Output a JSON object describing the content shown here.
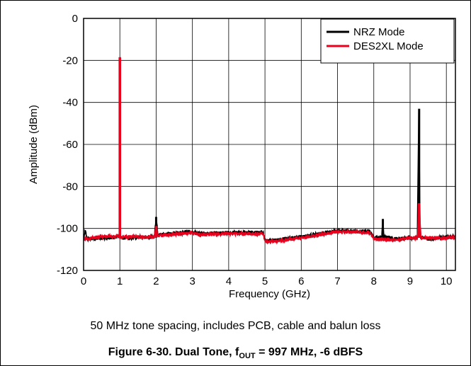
{
  "chart_data": {
    "type": "line",
    "title": "",
    "xlabel": "Frequency (GHz)",
    "ylabel": "Amplitude (dBm)",
    "xlim": [
      0,
      10.25
    ],
    "ylim": [
      -120,
      0
    ],
    "x_ticks": [
      0,
      1,
      2,
      3,
      4,
      5,
      6,
      7,
      8,
      9,
      10
    ],
    "y_ticks": [
      0,
      -20,
      -40,
      -60,
      -80,
      -100,
      -120
    ],
    "grid": true,
    "legend": "top-right",
    "series": [
      {
        "name": "NRZ Mode",
        "color": "#000000",
        "noise_floor": [
          [
            0,
            -104.5
          ],
          [
            0.05,
            -101
          ],
          [
            0.1,
            -105
          ],
          [
            0.98,
            -104
          ],
          [
            1.0,
            -104
          ],
          [
            1.05,
            -104.5
          ],
          [
            1.95,
            -104
          ],
          [
            2.0,
            -94.5
          ],
          [
            2.05,
            -103
          ],
          [
            3.0,
            -101.5
          ],
          [
            3.2,
            -102.5
          ],
          [
            4.0,
            -102
          ],
          [
            4.95,
            -102
          ],
          [
            5.0,
            -105.5
          ],
          [
            5.1,
            -106
          ],
          [
            6.0,
            -104
          ],
          [
            7.0,
            -101
          ],
          [
            7.9,
            -101.5
          ],
          [
            8.0,
            -104.5
          ],
          [
            8.22,
            -104
          ],
          [
            8.25,
            -95.5
          ],
          [
            8.28,
            -104
          ],
          [
            8.6,
            -105
          ],
          [
            9.0,
            -104.5
          ],
          [
            9.2,
            -104.5
          ],
          [
            9.24,
            -43
          ],
          [
            9.28,
            -104
          ],
          [
            9.5,
            -105
          ],
          [
            10.0,
            -104
          ],
          [
            10.25,
            -104
          ]
        ],
        "spikes": [
          {
            "x": 1.0,
            "y": -19
          },
          {
            "x": 2.0,
            "y": -94.5
          },
          {
            "x": 8.25,
            "y": -95.5
          },
          {
            "x": 9.25,
            "y": -43
          }
        ]
      },
      {
        "name": "DES2XL Mode",
        "color": "#e8001c",
        "noise_floor": [
          [
            0,
            -105
          ],
          [
            0.5,
            -104
          ],
          [
            0.98,
            -103.5
          ],
          [
            1.0,
            -104
          ],
          [
            1.05,
            -104
          ],
          [
            1.95,
            -104
          ],
          [
            2.0,
            -99
          ],
          [
            2.05,
            -103.5
          ],
          [
            3.0,
            -102
          ],
          [
            3.2,
            -103
          ],
          [
            4.0,
            -102.5
          ],
          [
            4.95,
            -102.5
          ],
          [
            5.0,
            -106
          ],
          [
            5.1,
            -106.5
          ],
          [
            6.0,
            -104.5
          ],
          [
            7.0,
            -101.5
          ],
          [
            7.9,
            -102
          ],
          [
            8.0,
            -105
          ],
          [
            8.6,
            -105.5
          ],
          [
            9.0,
            -104.5
          ],
          [
            9.2,
            -104.5
          ],
          [
            9.25,
            -88
          ],
          [
            9.3,
            -104.5
          ],
          [
            10.0,
            -104.5
          ],
          [
            10.25,
            -104
          ]
        ],
        "spikes": [
          {
            "x": 1.0,
            "y": -18.5
          },
          {
            "x": 2.0,
            "y": -99
          },
          {
            "x": 9.25,
            "y": -88
          }
        ]
      }
    ]
  },
  "note": "50 MHz tone spacing, includes PCB, cable and balun loss",
  "caption": {
    "prefix": "Figure 6-30. Dual Tone, f",
    "sub": "OUT",
    "suffix": " = 997 MHz, -6 dBFS"
  }
}
